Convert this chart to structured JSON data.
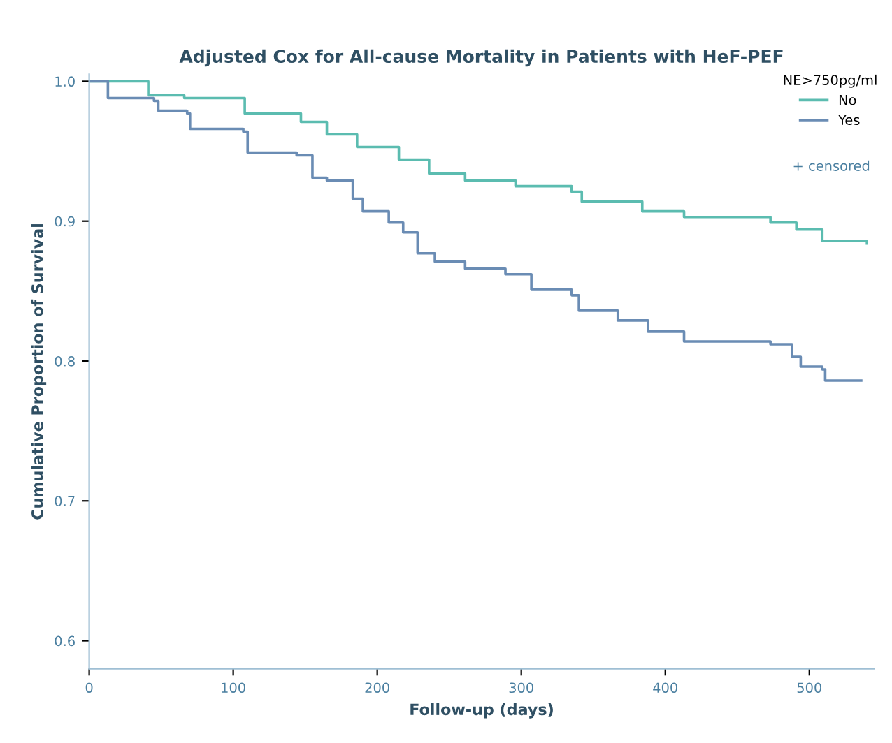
{
  "chart_data": {
    "type": "step",
    "title": "Adjusted Cox for All-cause Mortality in Patients with HeF-PEF",
    "xlabel": "Follow-up (days)",
    "ylabel": "Cumulative Proportion of Survival",
    "legend_title": "NE>750pg/ml",
    "legend": "top right",
    "grid": false,
    "xlim": [
      0,
      545
    ],
    "ylim": [
      0.58,
      1.005
    ],
    "xticks": [
      0,
      100,
      200,
      300,
      400,
      500
    ],
    "yticks": [
      {
        "value": 0.6,
        "label": "0.6"
      },
      {
        "value": 0.7,
        "label": "0.7"
      },
      {
        "value": 0.8,
        "label": "0.8"
      },
      {
        "value": 0.9,
        "label": "0.9"
      },
      {
        "value": 1.0,
        "label": "1.0"
      }
    ],
    "annotations": [
      "+ censored"
    ],
    "series": [
      {
        "name": "No",
        "color": "#5bbcb0",
        "x": [
          0,
          41,
          66,
          108,
          147,
          165,
          186,
          215,
          236,
          261,
          296,
          335,
          342,
          384,
          413,
          473,
          491,
          509,
          540
        ],
        "values": [
          1.0,
          0.99,
          0.988,
          0.977,
          0.971,
          0.962,
          0.953,
          0.944,
          0.934,
          0.929,
          0.925,
          0.921,
          0.914,
          0.907,
          0.903,
          0.899,
          0.894,
          0.886,
          0.884
        ]
      },
      {
        "name": "Yes",
        "color": "#6a8cb4",
        "x": [
          0,
          13,
          45,
          48,
          68,
          70,
          107,
          110,
          144,
          155,
          165,
          183,
          190,
          208,
          218,
          228,
          240,
          261,
          289,
          307,
          335,
          340,
          367,
          388,
          413,
          473,
          488,
          494,
          509,
          511,
          536
        ],
        "values": [
          1.0,
          0.988,
          0.986,
          0.979,
          0.977,
          0.966,
          0.964,
          0.949,
          0.947,
          0.931,
          0.929,
          0.916,
          0.907,
          0.899,
          0.892,
          0.877,
          0.871,
          0.866,
          0.862,
          0.851,
          0.847,
          0.836,
          0.829,
          0.821,
          0.814,
          0.812,
          0.803,
          0.796,
          0.794,
          0.786,
          0.786
        ]
      }
    ]
  }
}
